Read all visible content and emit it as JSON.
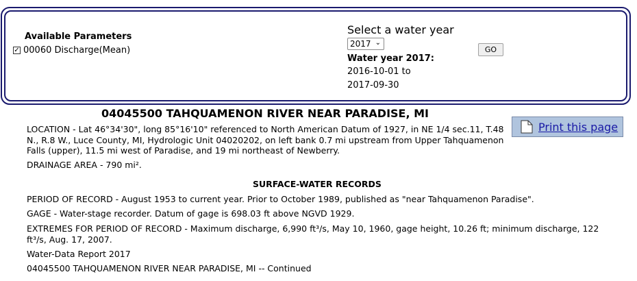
{
  "parameters": {
    "title": "Available Parameters",
    "items": [
      {
        "label": "00060 Discharge(Mean)",
        "checked": true
      }
    ]
  },
  "water_year": {
    "label": "Select a water year",
    "selected": "2017",
    "go_label": "GO",
    "heading": "Water year 2017:",
    "start_line": "2016-10-01 to",
    "end_line": "2017-09-30"
  },
  "station": {
    "title": "04045500 TAHQUAMENON RIVER NEAR PARADISE, MI"
  },
  "print": {
    "label": "Print this page"
  },
  "description": {
    "location_1": "LOCATION - Lat 46°34'30\", long 85°16'10\" referenced to North American Datum of 1927, in NE 1/4 sec.11, T.48",
    "location_2": "N., R.8 W., Luce County, MI, Hydrologic Unit 04020202, on left bank 0.7 mi upstream from Upper Tahquamenon",
    "location_3": "Falls (upper), 11.5 mi west of Paradise, and 19 mi northeast of Newberry.",
    "drainage": "DRAINAGE AREA - 790 mi².",
    "section_heading": "SURFACE-WATER RECORDS",
    "period": "PERIOD OF RECORD - August 1953 to current year. Prior to October 1989, published as \"near Tahquamenon Paradise\".",
    "gage": "GAGE - Water-stage recorder. Datum of gage is 698.03 ft above NGVD 1929.",
    "extremes_1": "EXTREMES FOR PERIOD OF RECORD - Maximum discharge, 6,990 ft³/s, May 10, 1960, gage height, 10.26 ft; minimum discharge, 122",
    "extremes_2": "ft³/s, Aug. 17, 2007.",
    "report": "Water-Data Report 2017",
    "continued": "04045500 TAHQUAMENON RIVER NEAR PARADISE, MI -- Continued"
  },
  "colors": {
    "box_border": "#1a1a6e",
    "print_bg": "#b0c4de",
    "link": "#1a1aa6"
  }
}
